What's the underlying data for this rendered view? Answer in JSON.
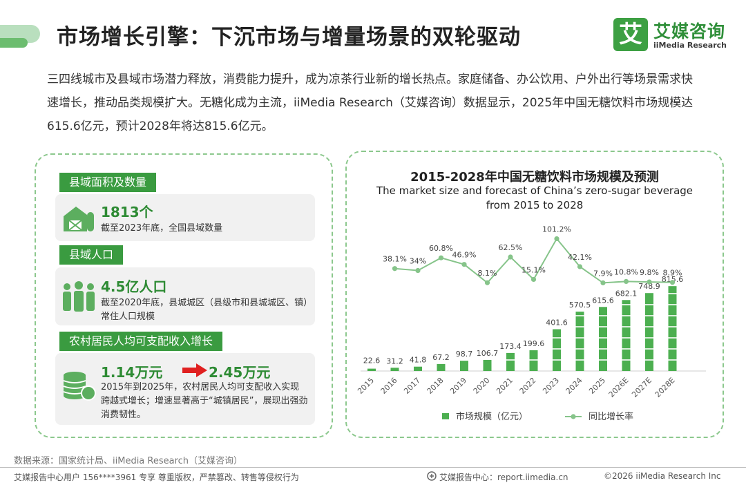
{
  "title": "市场增长引擎：下沉市场与增量场景的双轮驱动",
  "logo": {
    "glyph": "艾",
    "cn": "艾媒咨询",
    "en": "iiMedia Research"
  },
  "intro": "三四线城市及县域市场潜力释放，消费能力提升，成为凉茶行业新的增长热点。家庭储备、办公饮用、户外出行等场景需求快速增长，推动品类规模扩大。无糖化成为主流，iiMedia Research（艾媒咨询）数据显示，2025年中国无糖饮料市场规模达615.6亿元，预计2028年将达815.6亿元。",
  "left": {
    "county": {
      "tag": "县域面积及数量",
      "value": "1813个",
      "desc": "截至2023年底，全国县域数量",
      "icon": "barn-icon"
    },
    "population": {
      "tag": "县域人口",
      "value": "4.5亿人口",
      "desc": "截至2020年底，县城城区（县级市和县城城区、镇）常住人口规模",
      "icon": "people-icon"
    },
    "income": {
      "tag": "农村居民人均可支配收入增长",
      "value_from": "1.14万元",
      "value_to": "2.45万元",
      "desc": "2015年到2025年，农村居民人均可支配收入实现跨越式增长；增速显著高于“城镇居民”，展现出强劲消费韧性。",
      "icon": "coins-icon"
    }
  },
  "chart_data": {
    "type": "bar+line",
    "title": "2015-2028年中国无糖饮料市场规模及预测",
    "subtitle": "The market size and forecast of China’s zero-sugar beverage from 2015 to 2028",
    "categories": [
      "2015",
      "2016",
      "2017",
      "2018",
      "2019",
      "2020",
      "2021",
      "2022",
      "2023",
      "2024",
      "2025",
      "2026E",
      "2027E",
      "2028E"
    ],
    "series": [
      {
        "name": "市场规模（亿元）",
        "type": "bar",
        "values": [
          22.6,
          31.2,
          41.8,
          67.2,
          98.7,
          106.7,
          173.4,
          199.6,
          401.6,
          570.5,
          615.6,
          682.1,
          748.9,
          815.6
        ]
      },
      {
        "name": "同比增长率",
        "type": "line",
        "values": [
          null,
          38.1,
          34.0,
          60.8,
          46.9,
          8.1,
          62.5,
          15.1,
          101.2,
          42.1,
          7.9,
          10.8,
          9.8,
          8.9
        ],
        "unit": "%"
      }
    ],
    "colors": {
      "bar": "#4caf50",
      "line": "#86c48a"
    }
  },
  "source": "数据来源：国家统计局、iiMedia Research（艾媒咨询）",
  "footer": {
    "left": "艾媒报告中心用户 156****3961 专享 尊重版权，严禁篡改、转售等侵权行为",
    "center": "艾媒报告中心：report.iimedia.cn",
    "right": "©2026  iiMedia Research  Inc"
  }
}
